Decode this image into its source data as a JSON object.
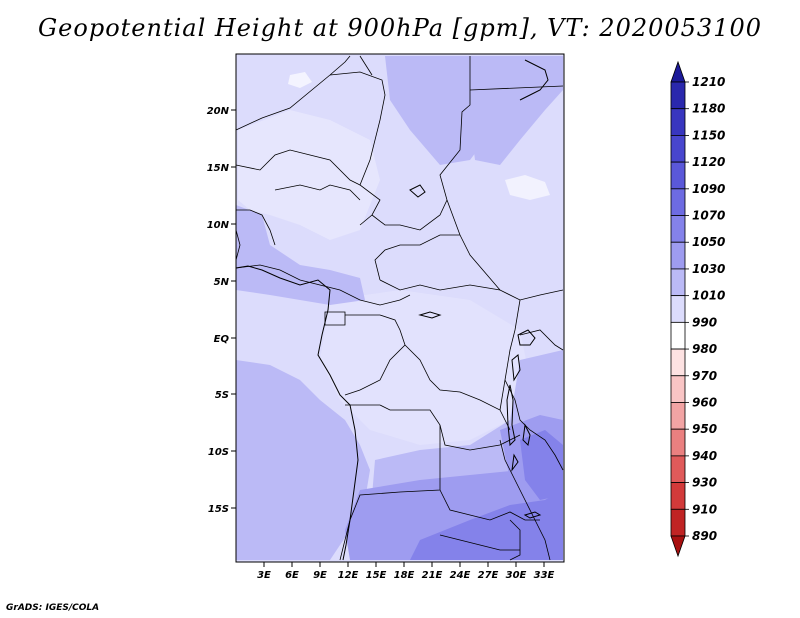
{
  "title": "Geopotential Height at 900hPa [gpm], VT: 2020053100",
  "footer": "GrADS: IGES/COLA",
  "map": {
    "variable": "Geopotential Height",
    "level": "900hPa",
    "units": "gpm",
    "valid_time": "2020053100",
    "lat_labels": [
      "20N",
      "15N",
      "10N",
      "5N",
      "EQ",
      "5S",
      "10S",
      "15S"
    ],
    "lon_labels": [
      "3E",
      "6E",
      "9E",
      "12E",
      "15E",
      "18E",
      "21E",
      "24E",
      "27E",
      "30E",
      "33E"
    ]
  },
  "colorbar": {
    "levels": [
      "1210",
      "1180",
      "1150",
      "1120",
      "1090",
      "1070",
      "1050",
      "1030",
      "1010",
      "990",
      "980",
      "970",
      "960",
      "950",
      "940",
      "930",
      "910",
      "890"
    ],
    "colors": [
      "#1c1a99",
      "#2a28ad",
      "#3836bf",
      "#4846ce",
      "#5a58d9",
      "#6d6be2",
      "#8482ea",
      "#9e9cf0",
      "#bbbaf6",
      "#dcdcfc",
      "#ffffff",
      "#fde2e2",
      "#f9c5c5",
      "#f2a4a4",
      "#ea8080",
      "#e05a5a",
      "#d23a3a",
      "#c02424",
      "#a81010"
    ]
  }
}
